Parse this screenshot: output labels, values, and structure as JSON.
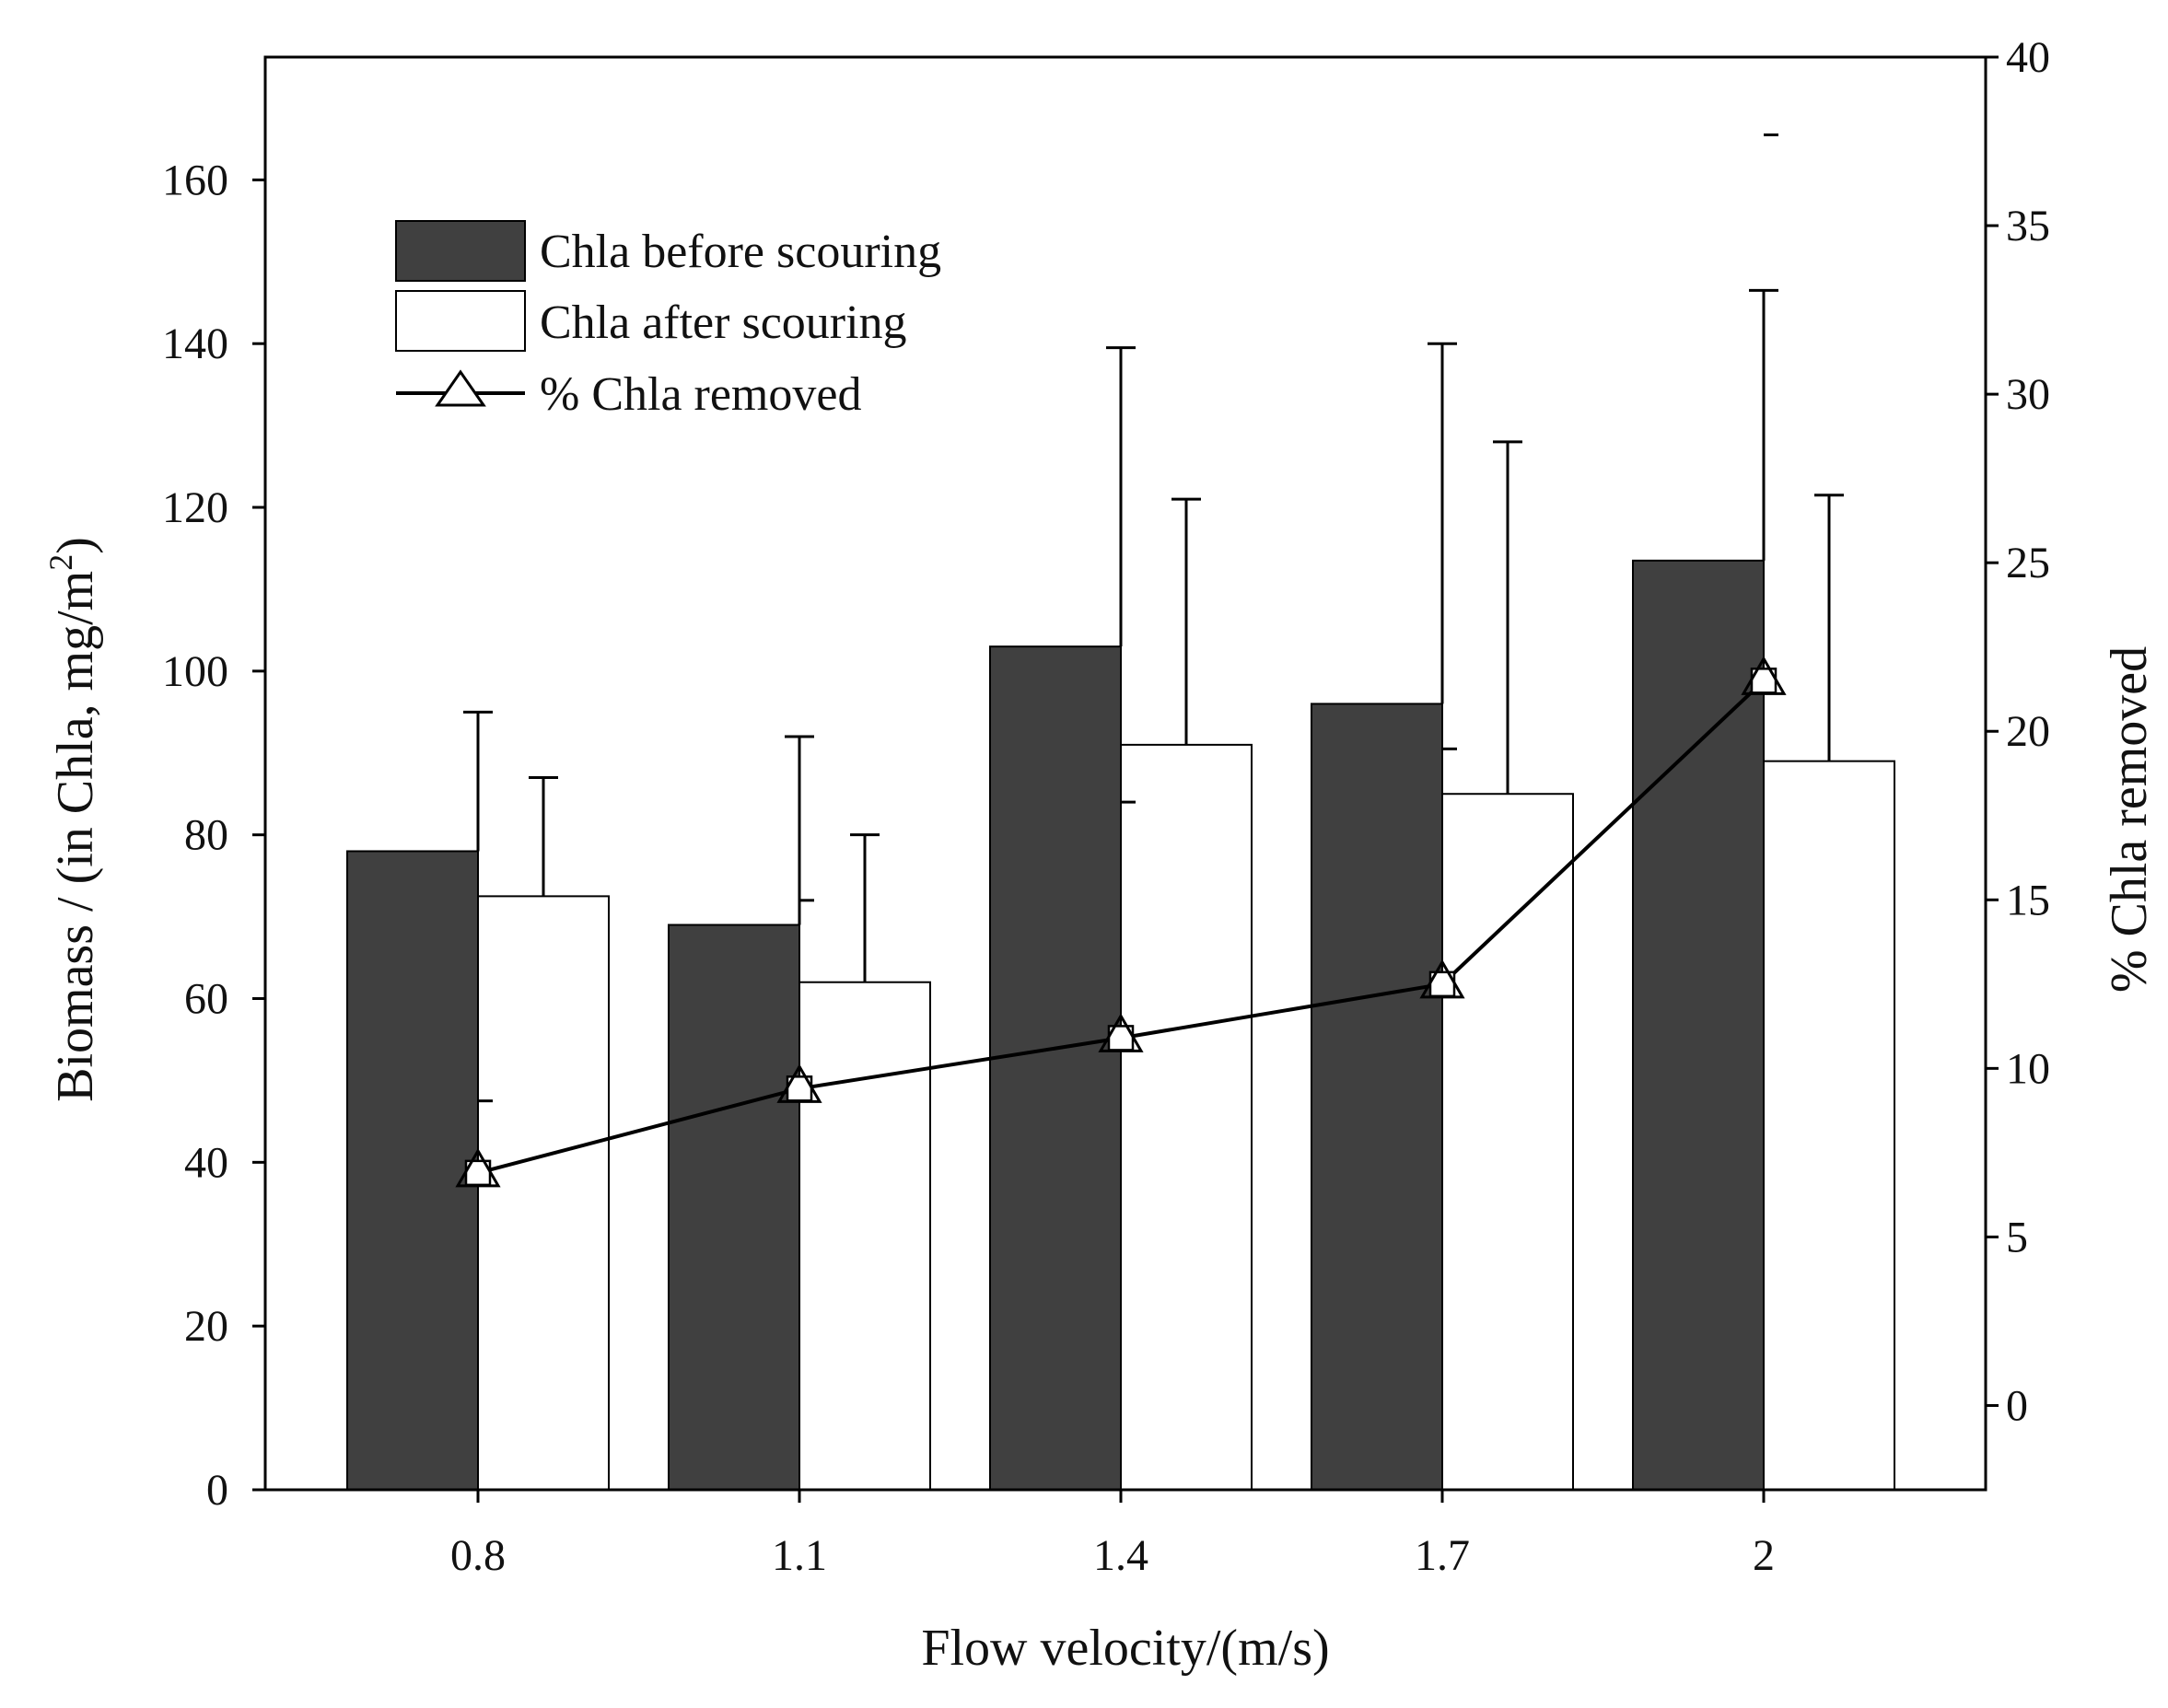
{
  "chart_data": {
    "type": "bar",
    "categories": [
      "0.8",
      "1.1",
      "1.4",
      "1.7",
      "2"
    ],
    "series": [
      {
        "name": "Chla before scouring",
        "axis": "left",
        "values": [
          78,
          69,
          103,
          96,
          113.5
        ],
        "error_upper": [
          95,
          92,
          139.5,
          140,
          146.5
        ],
        "error_lower": [
          47.5,
          72,
          84,
          90.5,
          165.5
        ],
        "color": "#404040"
      },
      {
        "name": "Chla after scouring",
        "axis": "left",
        "values": [
          72.5,
          62,
          91,
          85,
          89
        ],
        "error_upper": [
          87,
          80,
          121,
          128,
          121.5
        ],
        "color": "#ffffff"
      },
      {
        "name": "% Chla removed",
        "type": "line",
        "axis": "right",
        "values": [
          6.9,
          9.4,
          10.9,
          12.5,
          21.5
        ],
        "marker": "triangle-square",
        "color": "#000000"
      }
    ],
    "xlabel": "Flow velocity/(m/s)",
    "ylabel": "Biomass / (in Chla, mg/m",
    "ylabel_sup": "2",
    "ylabel_close": ")",
    "ylim": [
      0,
      175
    ],
    "yticks": [
      "0",
      "20",
      "40",
      "60",
      "80",
      "100",
      "120",
      "140",
      "160"
    ],
    "y2label": "% Chla removed",
    "y2lim": [
      -2.5,
      40
    ],
    "y2ticks": [
      "0",
      "5",
      "10",
      "15",
      "20",
      "25",
      "30",
      "35",
      "40"
    ],
    "legend_position": "top-left",
    "grid": false
  }
}
